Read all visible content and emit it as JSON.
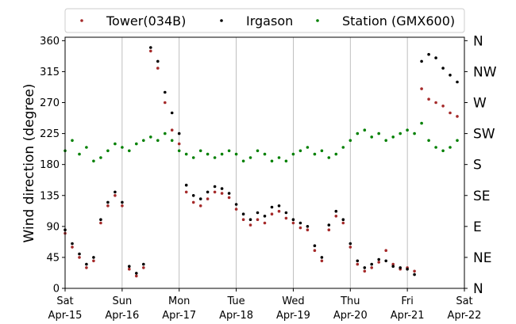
{
  "chart_data": {
    "type": "scatter",
    "title": "",
    "xlabel": "",
    "ylabel": "Wind direction (degree)",
    "xlim": [
      "2017-04-15",
      "2017-04-22"
    ],
    "ylim": [
      0,
      365
    ],
    "yticks": [
      0,
      45,
      90,
      135,
      180,
      225,
      270,
      315,
      360
    ],
    "xticks": [
      {
        "date": "2017-04-15",
        "day": "Sat",
        "date_label": "Apr-15"
      },
      {
        "date": "2017-04-16",
        "day": "Sun",
        "date_label": "Apr-16"
      },
      {
        "date": "2017-04-17",
        "day": "Mon",
        "date_label": "Apr-17"
      },
      {
        "date": "2017-04-18",
        "day": "Tue",
        "date_label": "Apr-18"
      },
      {
        "date": "2017-04-19",
        "day": "Wed",
        "date_label": "Apr-19"
      },
      {
        "date": "2017-04-20",
        "day": "Thu",
        "date_label": "Apr-20"
      },
      {
        "date": "2017-04-21",
        "day": "Fri",
        "date_label": "Apr-21"
      },
      {
        "date": "2017-04-22",
        "day": "Sat",
        "date_label": "Apr-22"
      }
    ],
    "right_axis_labels": [
      {
        "value": 0,
        "label": "N"
      },
      {
        "value": 45,
        "label": "NE"
      },
      {
        "value": 90,
        "label": "E"
      },
      {
        "value": 135,
        "label": "SE"
      },
      {
        "value": 180,
        "label": "S"
      },
      {
        "value": 225,
        "label": "SW"
      },
      {
        "value": 270,
        "label": "W"
      },
      {
        "value": 315,
        "label": "NW"
      },
      {
        "value": 360,
        "label": "N"
      }
    ],
    "grid": "vertical",
    "legend_position": "top",
    "series": [
      {
        "name": "Tower(034B)",
        "color": "#a52a2a",
        "points": [
          [
            "2017-04-15T00:00",
            80
          ],
          [
            "2017-04-15T03:00",
            60
          ],
          [
            "2017-04-15T06:00",
            45
          ],
          [
            "2017-04-15T09:00",
            30
          ],
          [
            "2017-04-15T12:00",
            40
          ],
          [
            "2017-04-15T15:00",
            95
          ],
          [
            "2017-04-15T18:00",
            120
          ],
          [
            "2017-04-15T21:00",
            135
          ],
          [
            "2017-04-16T00:00",
            120
          ],
          [
            "2017-04-16T03:00",
            28
          ],
          [
            "2017-04-16T06:00",
            18
          ],
          [
            "2017-04-16T09:00",
            30
          ],
          [
            "2017-04-16T12:00",
            345
          ],
          [
            "2017-04-16T15:00",
            320
          ],
          [
            "2017-04-16T18:00",
            270
          ],
          [
            "2017-04-16T21:00",
            230
          ],
          [
            "2017-04-17T00:00",
            210
          ],
          [
            "2017-04-17T03:00",
            140
          ],
          [
            "2017-04-17T06:00",
            125
          ],
          [
            "2017-04-17T09:00",
            120
          ],
          [
            "2017-04-17T12:00",
            130
          ],
          [
            "2017-04-17T15:00",
            140
          ],
          [
            "2017-04-17T18:00",
            138
          ],
          [
            "2017-04-17T21:00",
            132
          ],
          [
            "2017-04-18T00:00",
            115
          ],
          [
            "2017-04-18T03:00",
            100
          ],
          [
            "2017-04-18T06:00",
            92
          ],
          [
            "2017-04-18T09:00",
            100
          ],
          [
            "2017-04-18T12:00",
            95
          ],
          [
            "2017-04-18T15:00",
            108
          ],
          [
            "2017-04-18T18:00",
            112
          ],
          [
            "2017-04-18T21:00",
            102
          ],
          [
            "2017-04-19T00:00",
            95
          ],
          [
            "2017-04-19T03:00",
            88
          ],
          [
            "2017-04-19T06:00",
            85
          ],
          [
            "2017-04-19T09:00",
            55
          ],
          [
            "2017-04-19T12:00",
            40
          ],
          [
            "2017-04-19T15:00",
            85
          ],
          [
            "2017-04-19T18:00",
            105
          ],
          [
            "2017-04-19T21:00",
            95
          ],
          [
            "2017-04-20T00:00",
            60
          ],
          [
            "2017-04-20T03:00",
            35
          ],
          [
            "2017-04-20T06:00",
            25
          ],
          [
            "2017-04-20T09:00",
            30
          ],
          [
            "2017-04-20T12:00",
            38
          ],
          [
            "2017-04-20T15:00",
            55
          ],
          [
            "2017-04-20T18:00",
            35
          ],
          [
            "2017-04-20T21:00",
            28
          ],
          [
            "2017-04-21T00:00",
            30
          ],
          [
            "2017-04-21T03:00",
            25
          ],
          [
            "2017-04-21T06:00",
            290
          ],
          [
            "2017-04-21T09:00",
            275
          ],
          [
            "2017-04-21T12:00",
            270
          ],
          [
            "2017-04-21T15:00",
            265
          ],
          [
            "2017-04-21T18:00",
            255
          ],
          [
            "2017-04-21T21:00",
            250
          ]
        ]
      },
      {
        "name": "Irgason",
        "color": "#000000",
        "points": [
          [
            "2017-04-15T00:00",
            85
          ],
          [
            "2017-04-15T03:00",
            65
          ],
          [
            "2017-04-15T06:00",
            50
          ],
          [
            "2017-04-15T09:00",
            35
          ],
          [
            "2017-04-15T12:00",
            45
          ],
          [
            "2017-04-15T15:00",
            100
          ],
          [
            "2017-04-15T18:00",
            125
          ],
          [
            "2017-04-15T21:00",
            140
          ],
          [
            "2017-04-16T00:00",
            125
          ],
          [
            "2017-04-16T03:00",
            32
          ],
          [
            "2017-04-16T06:00",
            22
          ],
          [
            "2017-04-16T09:00",
            35
          ],
          [
            "2017-04-16T12:00",
            350
          ],
          [
            "2017-04-16T15:00",
            330
          ],
          [
            "2017-04-16T18:00",
            285
          ],
          [
            "2017-04-16T21:00",
            255
          ],
          [
            "2017-04-17T00:00",
            225
          ],
          [
            "2017-04-17T03:00",
            150
          ],
          [
            "2017-04-17T06:00",
            135
          ],
          [
            "2017-04-17T09:00",
            130
          ],
          [
            "2017-04-17T12:00",
            140
          ],
          [
            "2017-04-17T15:00",
            148
          ],
          [
            "2017-04-17T18:00",
            145
          ],
          [
            "2017-04-17T21:00",
            138
          ],
          [
            "2017-04-18T00:00",
            122
          ],
          [
            "2017-04-18T03:00",
            108
          ],
          [
            "2017-04-18T06:00",
            100
          ],
          [
            "2017-04-18T09:00",
            110
          ],
          [
            "2017-04-18T12:00",
            105
          ],
          [
            "2017-04-18T15:00",
            118
          ],
          [
            "2017-04-18T18:00",
            120
          ],
          [
            "2017-04-18T21:00",
            110
          ],
          [
            "2017-04-19T00:00",
            100
          ],
          [
            "2017-04-19T03:00",
            95
          ],
          [
            "2017-04-19T06:00",
            90
          ],
          [
            "2017-04-19T09:00",
            62
          ],
          [
            "2017-04-19T12:00",
            45
          ],
          [
            "2017-04-19T15:00",
            92
          ],
          [
            "2017-04-19T18:00",
            112
          ],
          [
            "2017-04-19T21:00",
            100
          ],
          [
            "2017-04-20T00:00",
            65
          ],
          [
            "2017-04-20T03:00",
            40
          ],
          [
            "2017-04-20T06:00",
            30
          ],
          [
            "2017-04-20T09:00",
            35
          ],
          [
            "2017-04-20T12:00",
            42
          ],
          [
            "2017-04-20T15:00",
            40
          ],
          [
            "2017-04-20T18:00",
            32
          ],
          [
            "2017-04-20T21:00",
            30
          ],
          [
            "2017-04-21T00:00",
            28
          ],
          [
            "2017-04-21T03:00",
            20
          ],
          [
            "2017-04-21T06:00",
            330
          ],
          [
            "2017-04-21T09:00",
            340
          ],
          [
            "2017-04-21T12:00",
            335
          ],
          [
            "2017-04-21T15:00",
            320
          ],
          [
            "2017-04-21T18:00",
            310
          ],
          [
            "2017-04-21T21:00",
            300
          ]
        ]
      },
      {
        "name": "Station (GMX600)",
        "color": "#008000",
        "points": [
          [
            "2017-04-15T00:00",
            200
          ],
          [
            "2017-04-15T03:00",
            215
          ],
          [
            "2017-04-15T06:00",
            195
          ],
          [
            "2017-04-15T09:00",
            205
          ],
          [
            "2017-04-15T12:00",
            185
          ],
          [
            "2017-04-15T15:00",
            190
          ],
          [
            "2017-04-15T18:00",
            200
          ],
          [
            "2017-04-15T21:00",
            210
          ],
          [
            "2017-04-16T00:00",
            205
          ],
          [
            "2017-04-16T03:00",
            200
          ],
          [
            "2017-04-16T06:00",
            210
          ],
          [
            "2017-04-16T09:00",
            215
          ],
          [
            "2017-04-16T12:00",
            220
          ],
          [
            "2017-04-16T15:00",
            215
          ],
          [
            "2017-04-16T18:00",
            225
          ],
          [
            "2017-04-16T21:00",
            215
          ],
          [
            "2017-04-17T00:00",
            200
          ],
          [
            "2017-04-17T03:00",
            195
          ],
          [
            "2017-04-17T06:00",
            190
          ],
          [
            "2017-04-17T09:00",
            200
          ],
          [
            "2017-04-17T12:00",
            195
          ],
          [
            "2017-04-17T15:00",
            190
          ],
          [
            "2017-04-17T18:00",
            195
          ],
          [
            "2017-04-17T21:00",
            200
          ],
          [
            "2017-04-18T00:00",
            195
          ],
          [
            "2017-04-18T03:00",
            185
          ],
          [
            "2017-04-18T06:00",
            190
          ],
          [
            "2017-04-18T09:00",
            200
          ],
          [
            "2017-04-18T12:00",
            195
          ],
          [
            "2017-04-18T15:00",
            185
          ],
          [
            "2017-04-18T18:00",
            190
          ],
          [
            "2017-04-18T21:00",
            185
          ],
          [
            "2017-04-19T00:00",
            195
          ],
          [
            "2017-04-19T03:00",
            200
          ],
          [
            "2017-04-19T06:00",
            205
          ],
          [
            "2017-04-19T09:00",
            195
          ],
          [
            "2017-04-19T12:00",
            200
          ],
          [
            "2017-04-19T15:00",
            190
          ],
          [
            "2017-04-19T18:00",
            195
          ],
          [
            "2017-04-19T21:00",
            205
          ],
          [
            "2017-04-20T00:00",
            215
          ],
          [
            "2017-04-20T03:00",
            225
          ],
          [
            "2017-04-20T06:00",
            230
          ],
          [
            "2017-04-20T09:00",
            220
          ],
          [
            "2017-04-20T12:00",
            225
          ],
          [
            "2017-04-20T15:00",
            215
          ],
          [
            "2017-04-20T18:00",
            220
          ],
          [
            "2017-04-20T21:00",
            225
          ],
          [
            "2017-04-21T00:00",
            230
          ],
          [
            "2017-04-21T03:00",
            225
          ],
          [
            "2017-04-21T06:00",
            240
          ],
          [
            "2017-04-21T09:00",
            215
          ],
          [
            "2017-04-21T12:00",
            205
          ],
          [
            "2017-04-21T15:00",
            200
          ],
          [
            "2017-04-21T18:00",
            205
          ],
          [
            "2017-04-21T21:00",
            215
          ]
        ]
      }
    ]
  }
}
